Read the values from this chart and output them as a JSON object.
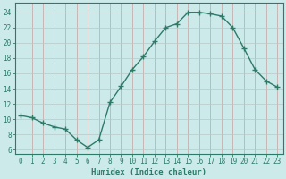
{
  "x": [
    0,
    1,
    2,
    3,
    4,
    5,
    6,
    7,
    8,
    9,
    10,
    11,
    12,
    13,
    14,
    15,
    16,
    17,
    18,
    19,
    20,
    21,
    22,
    23
  ],
  "y": [
    10.5,
    10.2,
    9.5,
    9.0,
    8.7,
    7.3,
    6.3,
    7.3,
    12.2,
    14.3,
    16.5,
    18.2,
    20.2,
    22.0,
    22.5,
    24.0,
    24.0,
    23.8,
    23.5,
    22.0,
    19.3,
    16.5,
    15.0,
    14.2
  ],
  "line_color": "#2d7a68",
  "marker": "+",
  "marker_size": 4,
  "bg_color": "#cceaea",
  "grid_color_v": "#c8a0a0",
  "grid_color_h": "#b8c8c8",
  "xlabel": "Humidex (Indice chaleur)",
  "ylabel_ticks": [
    6,
    8,
    10,
    12,
    14,
    16,
    18,
    20,
    22,
    24
  ],
  "xlim": [
    -0.5,
    23.5
  ],
  "ylim": [
    5.5,
    25.2
  ],
  "tick_color": "#2d7a68",
  "label_color": "#2d7a68",
  "font_size_label": 6.5,
  "font_size_tick": 5.5,
  "linewidth": 1.0,
  "spine_color": "#2d7a68"
}
